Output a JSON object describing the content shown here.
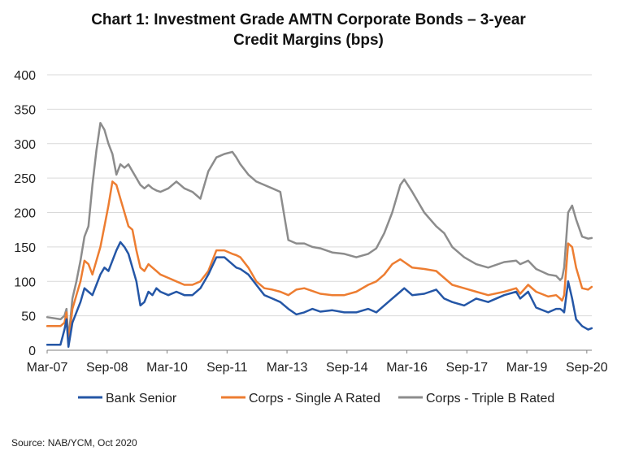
{
  "title_line1": "Chart 1: Investment Grade AMTN Corporate Bonds – 3-year",
  "title_line2": "Credit Margins (bps)",
  "source": "Source: NAB/YCM, Oct 2020",
  "colors": {
    "bank_senior": "#2456A6",
    "single_a": "#ED7D31",
    "triple_b": "#8C8C8C",
    "grid": "#D9D9D9",
    "axis": "#7F7F7F"
  },
  "chart_data": {
    "type": "line",
    "title": "Chart 1: Investment Grade AMTN Corporate Bonds – 3-year Credit Margins (bps)",
    "xlabel": "",
    "ylabel": "",
    "ylim": [
      0,
      400
    ],
    "yticks": [
      0,
      50,
      100,
      150,
      200,
      250,
      300,
      350,
      400
    ],
    "xlim": [
      2007.167,
      2020.792
    ],
    "x_ticks": [
      {
        "label": "Mar-07",
        "x": 2007.167
      },
      {
        "label": "Sep-08",
        "x": 2008.667
      },
      {
        "label": "Mar-10",
        "x": 2010.167
      },
      {
        "label": "Sep-11",
        "x": 2011.667
      },
      {
        "label": "Mar-13",
        "x": 2013.167
      },
      {
        "label": "Sep-14",
        "x": 2014.667
      },
      {
        "label": "Mar-16",
        "x": 2016.167
      },
      {
        "label": "Sep-17",
        "x": 2017.667
      },
      {
        "label": "Mar-19",
        "x": 2019.167
      },
      {
        "label": "Sep-20",
        "x": 2020.667
      }
    ],
    "grid": "horizontal",
    "legend": "bottom",
    "series": [
      {
        "name": "Bank Senior",
        "color": "#2456A6",
        "x": [
          2007.17,
          2007.5,
          2007.6,
          2007.65,
          2007.7,
          2007.8,
          2007.9,
          2008.0,
          2008.1,
          2008.2,
          2008.3,
          2008.4,
          2008.5,
          2008.6,
          2008.7,
          2008.8,
          2008.9,
          2009.0,
          2009.1,
          2009.2,
          2009.3,
          2009.4,
          2009.5,
          2009.6,
          2009.7,
          2009.8,
          2009.9,
          2010.0,
          2010.2,
          2010.4,
          2010.6,
          2010.8,
          2011.0,
          2011.2,
          2011.4,
          2011.6,
          2011.8,
          2011.9,
          2012.0,
          2012.2,
          2012.4,
          2012.6,
          2012.8,
          2013.0,
          2013.2,
          2013.4,
          2013.6,
          2013.8,
          2014.0,
          2014.3,
          2014.6,
          2014.9,
          2015.2,
          2015.4,
          2015.6,
          2015.8,
          2016.0,
          2016.1,
          2016.3,
          2016.6,
          2016.9,
          2017.1,
          2017.3,
          2017.6,
          2017.9,
          2018.2,
          2018.6,
          2018.9,
          2019.0,
          2019.2,
          2019.4,
          2019.7,
          2019.9,
          2020.0,
          2020.05,
          2020.1,
          2020.2,
          2020.3,
          2020.4,
          2020.55,
          2020.7,
          2020.79
        ],
        "values": [
          8,
          8,
          30,
          45,
          5,
          40,
          55,
          70,
          90,
          85,
          80,
          95,
          110,
          120,
          115,
          130,
          145,
          157,
          150,
          140,
          120,
          100,
          65,
          70,
          85,
          80,
          90,
          85,
          80,
          85,
          80,
          80,
          90,
          110,
          135,
          135,
          125,
          120,
          118,
          110,
          95,
          80,
          75,
          70,
          60,
          52,
          55,
          60,
          56,
          58,
          55,
          55,
          60,
          55,
          65,
          75,
          85,
          90,
          80,
          82,
          88,
          75,
          70,
          65,
          75,
          70,
          80,
          85,
          75,
          85,
          62,
          55,
          60,
          60,
          58,
          55,
          100,
          75,
          45,
          35,
          30,
          32
        ]
      },
      {
        "name": "Corps - Single A Rated",
        "color": "#ED7D31",
        "x": [
          2007.17,
          2007.5,
          2007.6,
          2007.65,
          2007.7,
          2007.8,
          2007.9,
          2008.0,
          2008.1,
          2008.2,
          2008.3,
          2008.4,
          2008.5,
          2008.6,
          2008.7,
          2008.8,
          2008.9,
          2009.0,
          2009.1,
          2009.2,
          2009.3,
          2009.4,
          2009.5,
          2009.6,
          2009.7,
          2009.8,
          2009.9,
          2010.0,
          2010.2,
          2010.4,
          2010.6,
          2010.8,
          2011.0,
          2011.2,
          2011.4,
          2011.6,
          2011.8,
          2011.9,
          2012.0,
          2012.2,
          2012.4,
          2012.6,
          2012.8,
          2013.0,
          2013.2,
          2013.4,
          2013.6,
          2013.8,
          2014.0,
          2014.3,
          2014.6,
          2014.9,
          2015.2,
          2015.4,
          2015.6,
          2015.8,
          2016.0,
          2016.1,
          2016.3,
          2016.6,
          2016.9,
          2017.1,
          2017.3,
          2017.6,
          2017.9,
          2018.2,
          2018.6,
          2018.9,
          2019.0,
          2019.2,
          2019.4,
          2019.7,
          2019.9,
          2020.0,
          2020.05,
          2020.1,
          2020.2,
          2020.3,
          2020.4,
          2020.55,
          2020.7,
          2020.79
        ],
        "values": [
          35,
          35,
          40,
          55,
          10,
          60,
          80,
          100,
          130,
          125,
          110,
          130,
          150,
          180,
          210,
          245,
          240,
          220,
          200,
          180,
          175,
          145,
          120,
          115,
          125,
          120,
          115,
          110,
          105,
          100,
          95,
          95,
          100,
          115,
          145,
          145,
          140,
          138,
          135,
          120,
          100,
          90,
          88,
          85,
          80,
          88,
          90,
          86,
          82,
          80,
          80,
          85,
          95,
          100,
          110,
          125,
          132,
          128,
          120,
          118,
          115,
          105,
          95,
          90,
          85,
          80,
          85,
          90,
          82,
          95,
          85,
          78,
          80,
          75,
          72,
          80,
          155,
          150,
          120,
          90,
          88,
          92
        ]
      },
      {
        "name": "Corps - Triple B Rated",
        "color": "#8C8C8C",
        "x": [
          2007.17,
          2007.5,
          2007.6,
          2007.65,
          2007.7,
          2007.8,
          2007.9,
          2008.0,
          2008.1,
          2008.2,
          2008.3,
          2008.4,
          2008.5,
          2008.6,
          2008.7,
          2008.8,
          2008.9,
          2009.0,
          2009.1,
          2009.2,
          2009.3,
          2009.4,
          2009.5,
          2009.6,
          2009.7,
          2009.8,
          2009.9,
          2010.0,
          2010.2,
          2010.4,
          2010.6,
          2010.8,
          2011.0,
          2011.2,
          2011.4,
          2011.6,
          2011.8,
          2011.9,
          2012.0,
          2012.2,
          2012.4,
          2012.6,
          2012.8,
          2013.0,
          2013.2,
          2013.4,
          2013.6,
          2013.8,
          2014.0,
          2014.3,
          2014.6,
          2014.9,
          2015.2,
          2015.4,
          2015.6,
          2015.8,
          2016.0,
          2016.1,
          2016.3,
          2016.6,
          2016.9,
          2017.1,
          2017.3,
          2017.6,
          2017.9,
          2018.2,
          2018.6,
          2018.9,
          2019.0,
          2019.2,
          2019.4,
          2019.7,
          2019.9,
          2020.0,
          2020.05,
          2020.1,
          2020.2,
          2020.3,
          2020.4,
          2020.55,
          2020.7,
          2020.79
        ],
        "values": [
          48,
          45,
          50,
          60,
          15,
          75,
          100,
          130,
          165,
          180,
          240,
          290,
          330,
          320,
          300,
          285,
          255,
          270,
          265,
          270,
          260,
          250,
          240,
          235,
          240,
          235,
          232,
          230,
          235,
          245,
          235,
          230,
          220,
          260,
          280,
          285,
          288,
          280,
          270,
          255,
          245,
          240,
          235,
          230,
          160,
          155,
          155,
          150,
          148,
          142,
          140,
          135,
          140,
          148,
          170,
          200,
          240,
          248,
          230,
          200,
          180,
          170,
          150,
          135,
          125,
          120,
          128,
          130,
          125,
          130,
          118,
          110,
          108,
          102,
          105,
          120,
          200,
          210,
          190,
          165,
          162,
          163
        ]
      }
    ]
  }
}
